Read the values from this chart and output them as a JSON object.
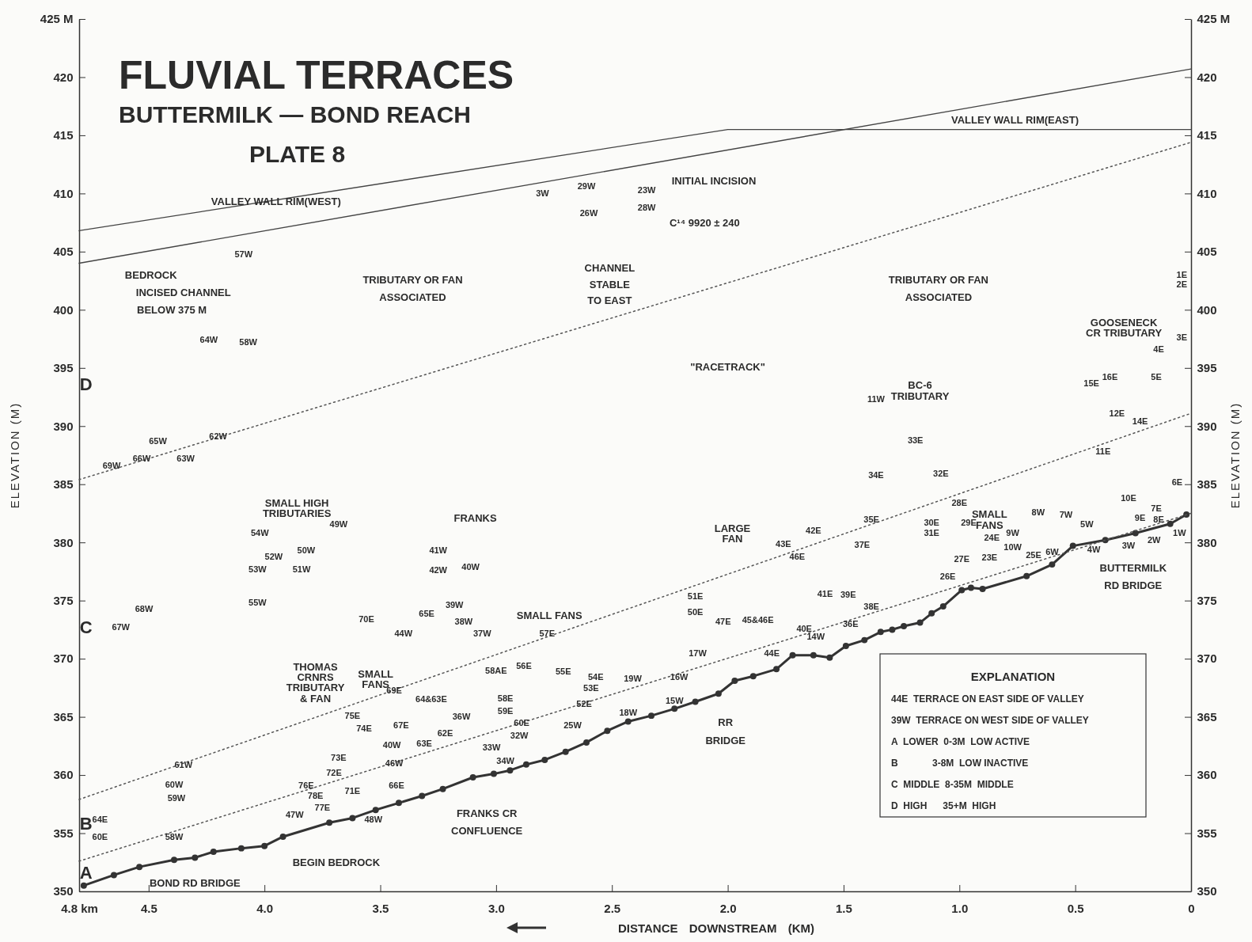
{
  "chart_data": {
    "type": "line",
    "title": "FLUVIAL TERRACES",
    "subtitle": "BUTTERMILK — BOND REACH",
    "xlabel": "DISTANCE DOWNSTREAM (KM)",
    "ylabel": "ELEVATION (M)",
    "y2label": "ELEVATION (M)",
    "xlim": [
      4.8,
      0
    ],
    "xticks": [
      {
        "value": 4.8,
        "label": "4.8 km"
      },
      4.5,
      {
        "value": 4,
        "label": "4.0"
      },
      3.5,
      {
        "value": 3,
        "label": "3.0"
      },
      2.5,
      {
        "value": 2,
        "label": "2.0"
      },
      1.5,
      {
        "value": 1,
        "label": "1.0"
      },
      0.5,
      0
    ],
    "ylim": [
      350,
      425
    ],
    "yticks": [
      350,
      355,
      360,
      365,
      370,
      375,
      380,
      385,
      390,
      395,
      400,
      405,
      410,
      415,
      420,
      {
        "value": 425,
        "label": "425 M"
      }
    ],
    "y2lim": [
      350,
      425
    ],
    "y2ticks": [
      350,
      355,
      360,
      365,
      370,
      375,
      380,
      385,
      390,
      395,
      400,
      405,
      410,
      415,
      420,
      {
        "value": 425,
        "label": "425 M"
      }
    ],
    "series": [
      {
        "color": "#333333",
        "marker": "circle",
        "line_style": "solid",
        "x": [
          4.78,
          4.65,
          4.54,
          4.39,
          4.3,
          4.22,
          4.1,
          4.0,
          3.92,
          3.72,
          3.62,
          3.52,
          3.42,
          3.32,
          3.23,
          3.1,
          3.01,
          2.94,
          2.87,
          2.79,
          2.7,
          2.61,
          2.52,
          2.43,
          2.33,
          2.23,
          2.14,
          2.04,
          1.97,
          1.89,
          1.79,
          1.72,
          1.63,
          1.56,
          1.49,
          1.41,
          1.34,
          1.29,
          1.24,
          1.17,
          1.12,
          1.07,
          0.99,
          0.95,
          0.9,
          0.71,
          0.6,
          0.51,
          0.37,
          0.24,
          0.09,
          0.02
        ],
        "values": [
          350.5,
          351.4,
          352.1,
          352.7,
          352.9,
          353.4,
          353.7,
          353.9,
          354.7,
          355.9,
          356.3,
          357.0,
          357.6,
          358.2,
          358.8,
          359.8,
          360.1,
          360.4,
          360.9,
          361.3,
          362.0,
          362.8,
          363.8,
          364.6,
          365.1,
          365.7,
          366.3,
          367.0,
          368.1,
          368.5,
          369.1,
          370.3,
          370.3,
          370.1,
          371.1,
          371.6,
          372.3,
          372.5,
          372.8,
          373.1,
          373.9,
          374.5,
          375.9,
          376.1,
          376.0,
          377.1,
          378.1,
          379.7,
          380.2,
          380.8,
          381.6,
          382.4
        ]
      },
      {
        "color": "#444444",
        "marker": "none",
        "line_style": "solid",
        "x": [
          4.8,
          2.0,
          0
        ],
        "values": [
          406.8,
          415.5,
          415.5
        ]
      },
      {
        "color": "#444444",
        "marker": "none",
        "line_style": "solid",
        "x": [
          4.8,
          0
        ],
        "values": [
          404.0,
          420.7
        ]
      },
      {
        "color": "#555555",
        "marker": "none",
        "line_style": "dotted",
        "x": [
          4.8,
          0
        ],
        "values": [
          385.4,
          414.4
        ]
      },
      {
        "color": "#555555",
        "marker": "none",
        "line_style": "dotted",
        "x": [
          4.8,
          0
        ],
        "values": [
          357.9,
          391.1
        ]
      },
      {
        "color": "#555555",
        "marker": "none",
        "line_style": "dotted",
        "x": [
          4.8,
          0
        ],
        "values": [
          352.6,
          382.5
        ]
      }
    ],
    "annotations": [
      "PLATE 8",
      "EXPLANATION",
      "44E  TERRACE ON EAST SIDE OF VALLEY",
      "39W  TERRACE ON WEST SIDE OF VALLEY",
      "A  LOWER  0-3M  LOW ACTIVE",
      "B             3-8M  LOW INACTIVE",
      "C  MIDDLE  8-35M  MIDDLE",
      "D  HIGH      35+M  HIGH",
      "VALLEY WALL RIM(WEST)",
      "VALLEY WALL RIM(EAST)",
      "INITIAL INCISION",
      "C¹⁴ 9920 ± 240",
      "BEDROCK",
      "INCISED CHANNEL",
      "BELOW 375 M",
      "TRIBUTARY OR FAN",
      "ASSOCIATED",
      "CHANNEL",
      "STABLE",
      "TO EAST",
      "TRIBUTARY OR FAN",
      "ASSOCIATED",
      "\"RACETRACK\"",
      "GOOSENECK",
      "CR TRIBUTARY",
      "BC-6",
      "TRIBUTARY",
      "SMALL HIGH",
      "TRIBUTARIES",
      "FRANKS",
      "LARGE",
      "FAN",
      "SMALL FANS",
      "SMALL",
      "FANS",
      "THOMAS",
      "CRNRS",
      "TRIBUTARY",
      "& FAN",
      "SMALL",
      "FANS",
      "RR",
      "BRIDGE",
      "FRANKS CR",
      "CONFLUENCE",
      "BEGIN BEDROCK",
      "BOND RD BRIDGE",
      "BUTTERMILK",
      "RD BRIDGE",
      "D",
      "C",
      "B",
      "A",
      "3W",
      "29W",
      "23W",
      "26W",
      "28W",
      "57W",
      "64W",
      "58W",
      "65W",
      "62W",
      "66W",
      "63W",
      "69W",
      "54W",
      "49W",
      "52W",
      "50W",
      "53W",
      "51W",
      "55W",
      "41W",
      "42W",
      "40W",
      "68W",
      "67W",
      "70E",
      "44W",
      "65E",
      "39W",
      "38W",
      "37W",
      "57E",
      "58AE",
      "56E",
      "55E",
      "54E",
      "53E",
      "52E",
      "69E",
      "64&63E",
      "58E",
      "59E",
      "60E",
      "62E",
      "36W",
      "63E",
      "32W",
      "33W",
      "34W",
      "40W",
      "46W",
      "25W",
      "75E",
      "74E",
      "67E",
      "73E",
      "72E",
      "76E",
      "78E",
      "77E",
      "71E",
      "47W",
      "48W",
      "66E",
      "61W",
      "60W",
      "59W",
      "64E",
      "60E",
      "58W",
      "11W",
      "33E",
      "34E",
      "32E",
      "28E",
      "30E",
      "29E",
      "31E",
      "35E",
      "37E",
      "42E",
      "43E",
      "46E",
      "41E",
      "39E",
      "24E",
      "9W",
      "8W",
      "7W",
      "27E",
      "23E",
      "26E",
      "10W",
      "25E",
      "6W",
      "5W",
      "4W",
      "3W",
      "2W",
      "1W",
      "10E",
      "9E",
      "8E",
      "7E",
      "6E",
      "11E",
      "12E",
      "14E",
      "15E",
      "16E",
      "5E",
      "4E",
      "3E",
      "2E",
      "1E",
      "51E",
      "50E",
      "47E",
      "45&46E",
      "40E",
      "44E",
      "14W",
      "17W",
      "16W",
      "19W",
      "15W",
      "18W",
      "38E",
      "36E"
    ]
  }
}
